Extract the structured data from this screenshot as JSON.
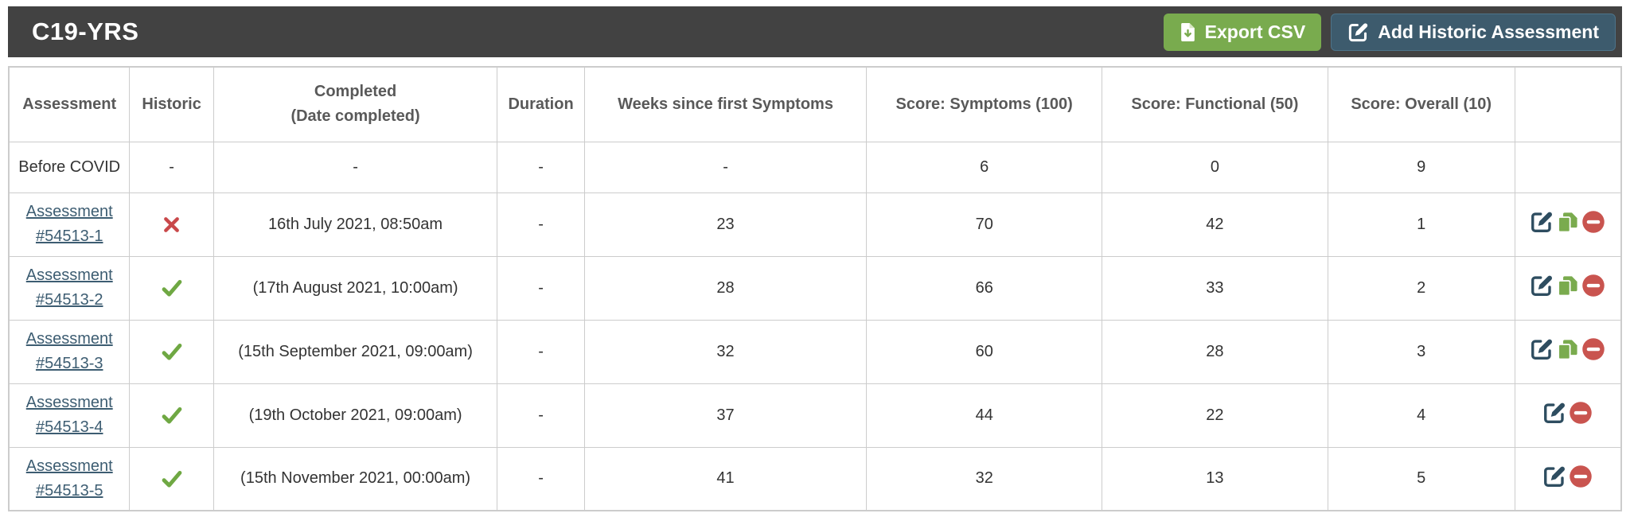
{
  "header": {
    "title": "C19-YRS",
    "buttons": {
      "export_csv": {
        "label": "Export CSV",
        "icon": "file-download-icon"
      },
      "add_historic": {
        "label": "Add Historic Assessment",
        "icon": "pen-square-icon"
      }
    }
  },
  "colors": {
    "title_bar": "#424242",
    "export_button_green": "#79ab4e",
    "add_button_blue": "#3d5b6d",
    "link_blue": "#3d5d72",
    "check_green": "#6fa843",
    "cross_red": "#c9484a",
    "edit_icon_blue": "#2e4d60",
    "copy_icon_green": "#7aab4e",
    "remove_icon_red": "#c9544f",
    "grid_line": "#cccccc",
    "header_text": "#595959",
    "cell_text": "#333333"
  },
  "table": {
    "columns": [
      {
        "lines": [
          "Assessment"
        ]
      },
      {
        "lines": [
          "Historic"
        ]
      },
      {
        "lines": [
          "Completed",
          "(Date completed)"
        ]
      },
      {
        "lines": [
          "Duration"
        ]
      },
      {
        "lines": [
          "Weeks since first Symptoms"
        ]
      },
      {
        "lines": [
          "Score: Symptoms (100)"
        ]
      },
      {
        "lines": [
          "Score: Functional (50)"
        ]
      },
      {
        "lines": [
          "Score: Overall (10)"
        ]
      },
      {
        "lines": [
          ""
        ]
      }
    ],
    "rows": [
      {
        "assessment": "Before COVID",
        "link": false,
        "historic": "-",
        "completed": "-",
        "duration": "-",
        "weeks": "-",
        "score_symptoms": "6",
        "score_functional": "0",
        "score_overall": "9",
        "actions": []
      },
      {
        "assessment": "Assessment #54513-1",
        "link": true,
        "historic": "no",
        "completed": "16th July 2021, 08:50am",
        "duration": "-",
        "weeks": "23",
        "score_symptoms": "70",
        "score_functional": "42",
        "score_overall": "1",
        "actions": [
          "edit",
          "copy",
          "remove"
        ]
      },
      {
        "assessment": "Assessment #54513-2",
        "link": true,
        "historic": "yes",
        "completed": "(17th August 2021, 10:00am)",
        "duration": "-",
        "weeks": "28",
        "score_symptoms": "66",
        "score_functional": "33",
        "score_overall": "2",
        "actions": [
          "edit",
          "copy",
          "remove"
        ]
      },
      {
        "assessment": "Assessment #54513-3",
        "link": true,
        "historic": "yes",
        "completed": "(15th September 2021, 09:00am)",
        "duration": "-",
        "weeks": "32",
        "score_symptoms": "60",
        "score_functional": "28",
        "score_overall": "3",
        "actions": [
          "edit",
          "copy",
          "remove"
        ]
      },
      {
        "assessment": "Assessment #54513-4",
        "link": true,
        "historic": "yes",
        "completed": "(19th October 2021, 09:00am)",
        "duration": "-",
        "weeks": "37",
        "score_symptoms": "44",
        "score_functional": "22",
        "score_overall": "4",
        "actions": [
          "edit",
          "remove"
        ]
      },
      {
        "assessment": "Assessment #54513-5",
        "link": true,
        "historic": "yes",
        "completed": "(15th November 2021, 00:00am)",
        "duration": "-",
        "weeks": "41",
        "score_symptoms": "32",
        "score_functional": "13",
        "score_overall": "5",
        "actions": [
          "edit",
          "remove"
        ]
      }
    ]
  }
}
